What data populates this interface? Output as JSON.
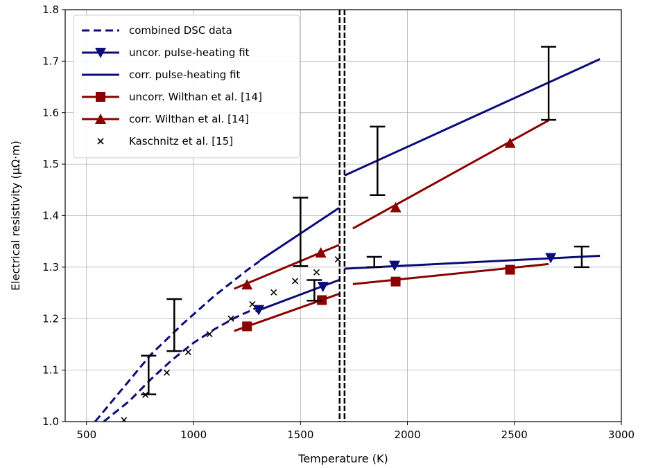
{
  "chart_data": {
    "type": "line",
    "xlabel": "Temperature (K)",
    "ylabel": "Electrical resistivity (μΩ·m)",
    "xlim": [
      400,
      3000
    ],
    "ylim": [
      1.0,
      1.8
    ],
    "xticks": [
      500,
      1000,
      1500,
      2000,
      2500,
      3000
    ],
    "yticks": [
      1.0,
      1.1,
      1.2,
      1.3,
      1.4,
      1.5,
      1.6,
      1.7,
      1.8
    ],
    "xtick_labels": [
      "500",
      "1000",
      "1500",
      "2000",
      "2500",
      "3000"
    ],
    "ytick_labels": [
      "1.0",
      "1.1",
      "1.2",
      "1.3",
      "1.4",
      "1.5",
      "1.6",
      "1.7",
      "1.8"
    ],
    "grid": true,
    "legend_position": "top-left",
    "colors": {
      "blue": "#0b0b7a",
      "red": "#8b0000",
      "black": "#000000"
    },
    "vertical_lines": [
      1683,
      1706
    ],
    "series": [
      {
        "name": "combined DSC data",
        "style": "dashed",
        "color": "#0b0b7a",
        "segments": [
          {
            "x": [
              540,
              650,
              800,
              950,
              1100,
              1250,
              1310
            ],
            "y": [
              1.0,
              1.055,
              1.13,
              1.19,
              1.245,
              1.294,
              1.312
            ]
          },
          {
            "x": [
              580,
              700,
              800,
              900,
              1000,
              1100,
              1200,
              1290
            ],
            "y": [
              1.0,
              1.04,
              1.082,
              1.12,
              1.153,
              1.18,
              1.203,
              1.22
            ]
          }
        ]
      },
      {
        "name": "uncor. pulse-heating fit",
        "style": "solid",
        "color": "#0b0b7a",
        "marker": "triangle-down",
        "segments": [
          {
            "x": [
              1290,
              1680
            ],
            "y": [
              1.214,
              1.275
            ]
          },
          {
            "x": [
              1706,
              2900
            ],
            "y": [
              1.297,
              1.322
            ]
          }
        ],
        "markers": {
          "x": [
            1305,
            1605,
            1940,
            2670
          ],
          "y": [
            1.217,
            1.262,
            1.303,
            1.318
          ]
        }
      },
      {
        "name": "corr. pulse-heating fit",
        "style": "solid",
        "color": "#0b0b7a",
        "segments": [
          {
            "x": [
              1310,
              1680
            ],
            "y": [
              1.313,
              1.415
            ]
          },
          {
            "x": [
              1706,
              2900
            ],
            "y": [
              1.478,
              1.704
            ]
          }
        ]
      },
      {
        "name": "uncorr. Wilthan et al. [14]",
        "style": "solid",
        "color": "#8b0000",
        "marker": "square",
        "segments": [
          {
            "x": [
              1190,
              1680
            ],
            "y": [
              1.176,
              1.248
            ]
          },
          {
            "x": [
              1745,
              2660
            ],
            "y": [
              1.267,
              1.306
            ]
          }
        ],
        "markers": {
          "x": [
            1250,
            1600,
            1945,
            2480
          ],
          "y": [
            1.185,
            1.236,
            1.272,
            1.295
          ]
        }
      },
      {
        "name": "corr. Wilthan et al. [14]",
        "style": "solid",
        "color": "#8b0000",
        "marker": "triangle-up",
        "segments": [
          {
            "x": [
              1190,
              1680
            ],
            "y": [
              1.258,
              1.343
            ]
          },
          {
            "x": [
              1745,
              2660
            ],
            "y": [
              1.375,
              1.585
            ]
          }
        ],
        "markers": {
          "x": [
            1250,
            1595,
            1945,
            2480
          ],
          "y": [
            1.266,
            1.328,
            1.416,
            1.541
          ]
        }
      },
      {
        "name": "Kaschnitz et al. [15]",
        "style": "scatter",
        "color": "#000000",
        "marker": "x",
        "points": {
          "x": [
            675,
            775,
            875,
            975,
            1075,
            1175,
            1275,
            1375,
            1475,
            1575,
            1675
          ],
          "y": [
            1.003,
            1.052,
            1.095,
            1.135,
            1.17,
            1.2,
            1.228,
            1.251,
            1.273,
            1.29,
            1.315
          ]
        }
      }
    ],
    "error_bars": [
      {
        "x": 790,
        "ylow": 1.053,
        "yhigh": 1.128
      },
      {
        "x": 910,
        "ylow": 1.137,
        "yhigh": 1.238
      },
      {
        "x": 1500,
        "ylow": 1.302,
        "yhigh": 1.435
      },
      {
        "x": 1565,
        "ylow": 1.235,
        "yhigh": 1.275
      },
      {
        "x": 1845,
        "ylow": 1.3,
        "yhigh": 1.32
      },
      {
        "x": 1860,
        "ylow": 1.44,
        "yhigh": 1.573
      },
      {
        "x": 2660,
        "ylow": 1.586,
        "yhigh": 1.728
      },
      {
        "x": 2815,
        "ylow": 1.3,
        "yhigh": 1.34
      }
    ]
  }
}
